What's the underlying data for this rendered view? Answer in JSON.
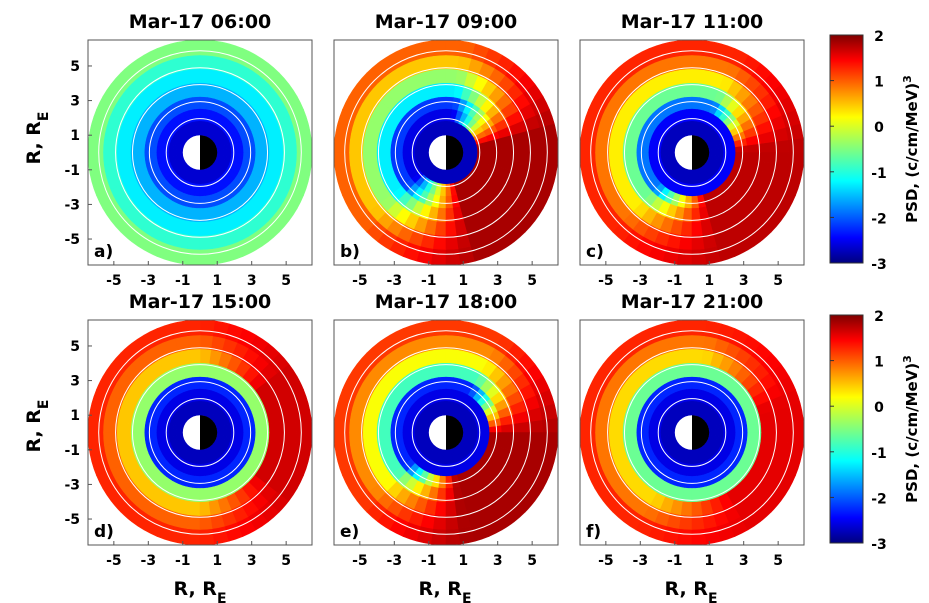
{
  "figure": {
    "ylabel": "R, R",
    "ylabel_sub": "E",
    "xlabel": "R, R",
    "xlabel_sub": "E"
  },
  "colorbar": {
    "label": "PSD, (c/cm/MeV)",
    "label_sup": "3",
    "ticks": [
      "2",
      "1",
      "0",
      "-1",
      "-2",
      "-3"
    ],
    "colormap": "jet"
  },
  "chart_data": [
    {
      "type": "heatmap",
      "title": "Mar-17 06:00",
      "panel": "a)",
      "x_ticks": [
        "-5",
        "-3",
        "-1",
        "1",
        "3",
        "5"
      ],
      "y_ticks": [
        "5",
        "3",
        "1",
        "-1",
        "-3",
        "-5"
      ],
      "xlim": [
        -6.5,
        6.5
      ],
      "ylim": [
        -6.5,
        6.5
      ],
      "clim": [
        -3,
        2
      ],
      "rings": [
        {
          "r": 1.8,
          "psd": -2.6
        },
        {
          "r": 2.5,
          "psd": -2.3
        },
        {
          "r": 3.2,
          "psd": -2.0
        },
        {
          "r": 4.0,
          "psd": -1.5
        },
        {
          "r": 4.8,
          "psd": -1.2
        },
        {
          "r": 5.6,
          "psd": -0.9
        },
        {
          "r": 6.5,
          "psd": -0.5
        }
      ],
      "enhancement": {
        "center_mlt_deg": 0,
        "width_deg": 0,
        "psd": -0.5,
        "min_r": 6.0
      }
    },
    {
      "type": "heatmap",
      "title": "Mar-17 09:00",
      "panel": "b)",
      "x_ticks": [
        "-5",
        "-3",
        "-1",
        "1",
        "3",
        "5"
      ],
      "y_ticks": [],
      "xlim": [
        -6.5,
        6.5
      ],
      "ylim": [
        -6.5,
        6.5
      ],
      "clim": [
        -3,
        2
      ],
      "rings": [
        {
          "r": 1.8,
          "psd": -2.7
        },
        {
          "r": 2.5,
          "psd": -2.5
        },
        {
          "r": 3.2,
          "psd": -2.1
        },
        {
          "r": 4.0,
          "psd": -1.2
        },
        {
          "r": 4.8,
          "psd": -0.4
        },
        {
          "r": 5.6,
          "psd": 0.4
        },
        {
          "r": 6.5,
          "psd": 0.9
        }
      ],
      "enhancement": {
        "center_mlt_deg": -30,
        "width_deg": 110,
        "psd": 1.8,
        "min_r": 2.6
      }
    },
    {
      "type": "heatmap",
      "title": "Mar-17 11:00",
      "panel": "c)",
      "x_ticks": [
        "-5",
        "-3",
        "-1",
        "1",
        "3",
        "5"
      ],
      "y_ticks": [],
      "xlim": [
        -6.5,
        6.5
      ],
      "ylim": [
        -6.5,
        6.5
      ],
      "clim": [
        -3,
        2
      ],
      "rings": [
        {
          "r": 1.8,
          "psd": -2.7
        },
        {
          "r": 2.5,
          "psd": -2.4
        },
        {
          "r": 3.2,
          "psd": -1.8
        },
        {
          "r": 4.0,
          "psd": -0.6
        },
        {
          "r": 4.8,
          "psd": 0.2
        },
        {
          "r": 5.6,
          "psd": 0.8
        },
        {
          "r": 6.5,
          "psd": 1.2
        }
      ],
      "enhancement": {
        "center_mlt_deg": -35,
        "width_deg": 100,
        "psd": 1.7,
        "min_r": 3.0
      }
    },
    {
      "type": "heatmap",
      "title": "Mar-17 15:00",
      "panel": "d)",
      "x_ticks": [
        "-5",
        "-3",
        "-1",
        "1",
        "3",
        "5"
      ],
      "y_ticks": [
        "5",
        "3",
        "1",
        "-1",
        "-3",
        "-5"
      ],
      "xlim": [
        -6.5,
        6.5
      ],
      "ylim": [
        -6.5,
        6.5
      ],
      "clim": [
        -3,
        2
      ],
      "rings": [
        {
          "r": 1.8,
          "psd": -2.7
        },
        {
          "r": 2.5,
          "psd": -2.5
        },
        {
          "r": 3.2,
          "psd": -2.2
        },
        {
          "r": 4.0,
          "psd": -0.4
        },
        {
          "r": 4.8,
          "psd": 0.4
        },
        {
          "r": 5.6,
          "psd": 0.9
        },
        {
          "r": 6.5,
          "psd": 1.2
        }
      ],
      "enhancement": {
        "center_mlt_deg": 0,
        "width_deg": 90,
        "psd": 1.6,
        "min_r": 4.6
      }
    },
    {
      "type": "heatmap",
      "title": "Mar-17 18:00",
      "panel": "e)",
      "x_ticks": [
        "-5",
        "-3",
        "-1",
        "1",
        "3",
        "5"
      ],
      "y_ticks": [],
      "xlim": [
        -6.5,
        6.5
      ],
      "ylim": [
        -6.5,
        6.5
      ],
      "clim": [
        -3,
        2
      ],
      "rings": [
        {
          "r": 1.8,
          "psd": -2.7
        },
        {
          "r": 2.5,
          "psd": -2.5
        },
        {
          "r": 3.2,
          "psd": -2.2
        },
        {
          "r": 4.0,
          "psd": -0.8
        },
        {
          "r": 4.8,
          "psd": 0.1
        },
        {
          "r": 5.6,
          "psd": 0.7
        },
        {
          "r": 6.5,
          "psd": 1.1
        }
      ],
      "enhancement": {
        "center_mlt_deg": -40,
        "width_deg": 100,
        "psd": 1.8,
        "min_r": 3.2
      }
    },
    {
      "type": "heatmap",
      "title": "Mar-17 21:00",
      "panel": "f)",
      "x_ticks": [
        "-5",
        "-3",
        "-1",
        "1",
        "3",
        "5"
      ],
      "y_ticks": [],
      "xlim": [
        -6.5,
        6.5
      ],
      "ylim": [
        -6.5,
        6.5
      ],
      "clim": [
        -3,
        2
      ],
      "rings": [
        {
          "r": 1.8,
          "psd": -2.7
        },
        {
          "r": 2.5,
          "psd": -2.5
        },
        {
          "r": 3.2,
          "psd": -2.2
        },
        {
          "r": 4.0,
          "psd": -0.6
        },
        {
          "r": 4.8,
          "psd": 0.3
        },
        {
          "r": 5.6,
          "psd": 0.8
        },
        {
          "r": 6.5,
          "psd": 1.2
        }
      ],
      "enhancement": {
        "center_mlt_deg": -20,
        "width_deg": 100,
        "psd": 1.5,
        "min_r": 4.4
      }
    }
  ]
}
